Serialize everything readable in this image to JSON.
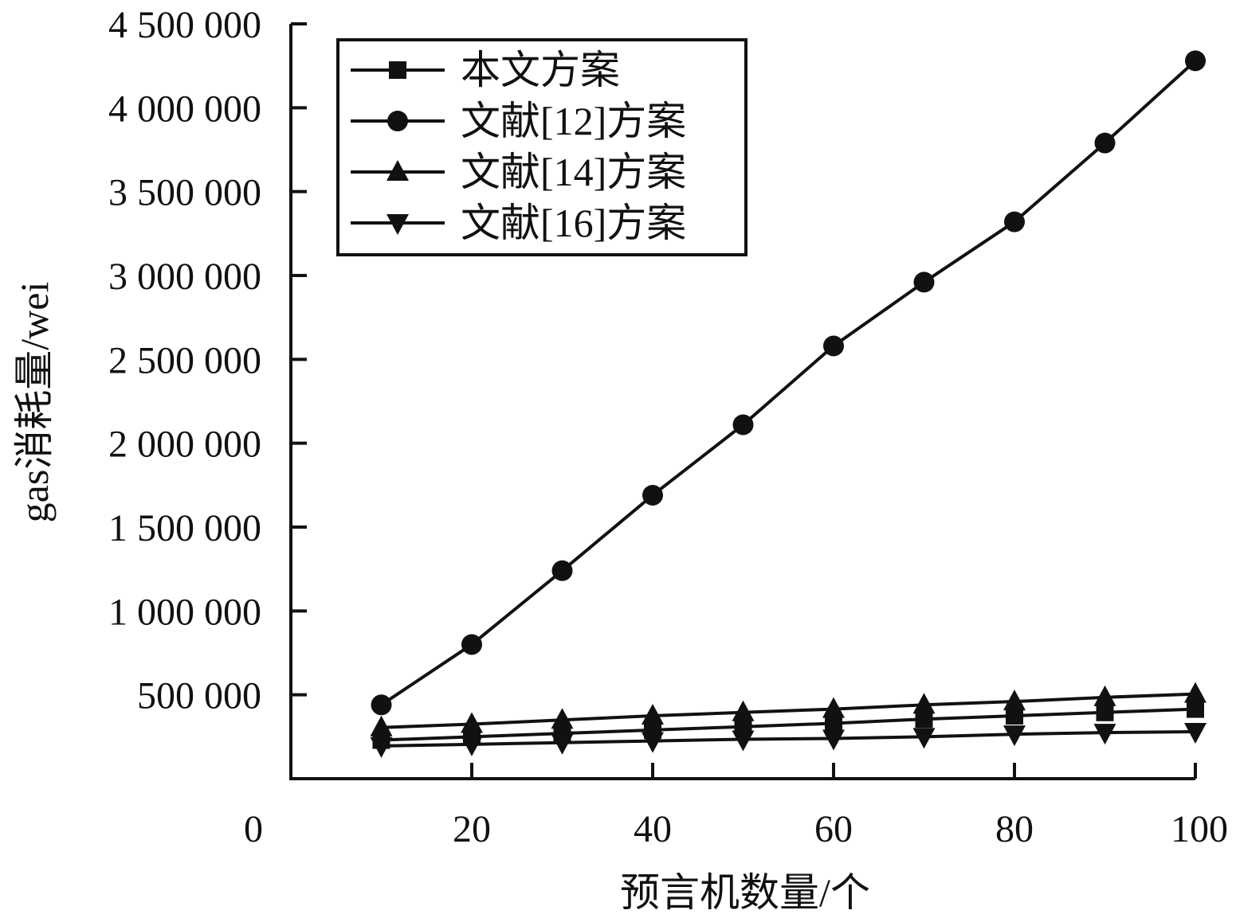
{
  "chart_data": {
    "type": "line",
    "xlabel": "预言机数量/个",
    "ylabel": "gas消耗量/wei",
    "xlim": [
      0,
      100
    ],
    "ylim": [
      0,
      4500000
    ],
    "x_ticks": [
      {
        "value": 0,
        "label": "0"
      },
      {
        "value": 20,
        "label": "20"
      },
      {
        "value": 40,
        "label": "40"
      },
      {
        "value": 60,
        "label": "60"
      },
      {
        "value": 80,
        "label": "80"
      },
      {
        "value": 100,
        "label": "100"
      }
    ],
    "y_ticks": [
      {
        "value": 500000,
        "label": "500 000"
      },
      {
        "value": 1000000,
        "label": "1 000 000"
      },
      {
        "value": 1500000,
        "label": "1 500 000"
      },
      {
        "value": 2000000,
        "label": "2 000 000"
      },
      {
        "value": 2500000,
        "label": "2 500 000"
      },
      {
        "value": 3000000,
        "label": "3 000 000"
      },
      {
        "value": 3500000,
        "label": "3 500 000"
      },
      {
        "value": 4000000,
        "label": "4 000 000"
      },
      {
        "value": 4500000,
        "label": "4 500 000"
      }
    ],
    "grid": false,
    "legend_position": "top-left",
    "x": [
      10,
      20,
      30,
      40,
      50,
      60,
      70,
      80,
      90,
      100
    ],
    "series": [
      {
        "name": "本文方案",
        "marker": "square",
        "values": [
          230000,
          250000,
          270000,
          290000,
          310000,
          330000,
          355000,
          375000,
          395000,
          415000
        ]
      },
      {
        "name": "文献[12]方案",
        "marker": "circle",
        "values": [
          440000,
          800000,
          1240000,
          1690000,
          2110000,
          2580000,
          2960000,
          3320000,
          3790000,
          4280000
        ]
      },
      {
        "name": "文献[14]方案",
        "marker": "triangle-up",
        "values": [
          305000,
          325000,
          350000,
          375000,
          395000,
          415000,
          440000,
          460000,
          485000,
          505000
        ]
      },
      {
        "name": "文献[16]方案",
        "marker": "triangle-down",
        "values": [
          195000,
          205000,
          215000,
          225000,
          235000,
          240000,
          250000,
          265000,
          275000,
          280000
        ]
      }
    ],
    "color": "#111111"
  }
}
